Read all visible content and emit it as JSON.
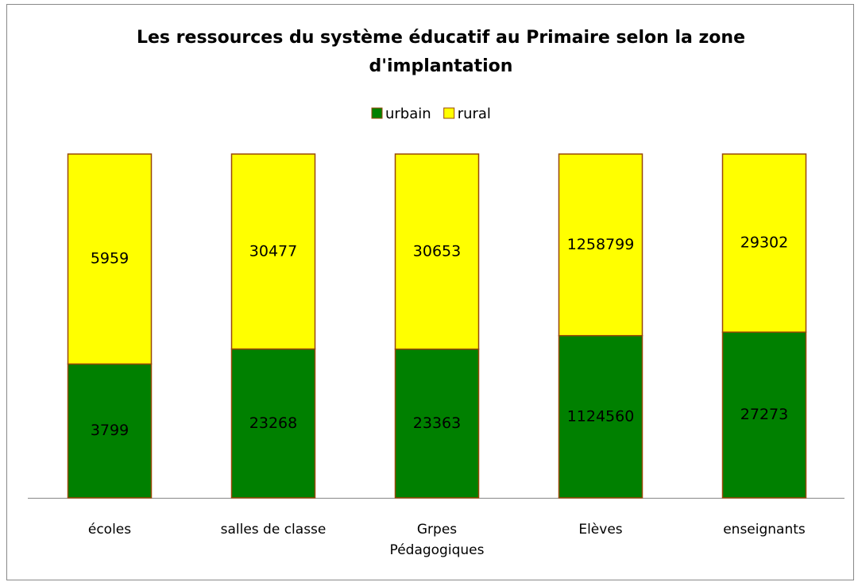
{
  "chart_data": {
    "type": "bar",
    "stacking": "percent",
    "title": "Les ressources du système éducatif au Primaire selon la zone d'implantation",
    "categories": [
      "écoles",
      "salles de classe",
      "Grpes Pédagogiques",
      "Elèves",
      "enseignants"
    ],
    "series": [
      {
        "name": "urbain",
        "color": "#008000",
        "values": [
          3799,
          23268,
          23363,
          1124560,
          27273
        ]
      },
      {
        "name": "rural",
        "color": "#ffff00",
        "values": [
          5959,
          30477,
          30653,
          1258799,
          29302
        ]
      }
    ],
    "legend": "top",
    "border_color": "#984807"
  }
}
